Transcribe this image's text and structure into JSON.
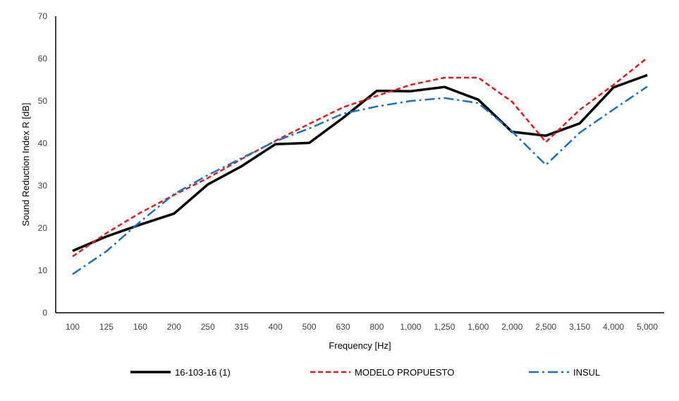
{
  "chart_data": {
    "type": "line",
    "categories": [
      "100",
      "125",
      "160",
      "200",
      "250",
      "315",
      "400",
      "500",
      "630",
      "800",
      "1,000",
      "1,250",
      "1,600",
      "2,000",
      "2,500",
      "3,150",
      "4,000",
      "5,000"
    ],
    "series": [
      {
        "name": "16-103-16 (1)",
        "color": "#000000",
        "style": "solid",
        "values": [
          14.6,
          18.0,
          20.8,
          23.4,
          30.3,
          34.6,
          39.8,
          40.1,
          46.0,
          52.4,
          52.3,
          53.3,
          50.3,
          42.7,
          41.8,
          44.7,
          53.2,
          56.1
        ]
      },
      {
        "name": "MODELO PROPUESTO",
        "color": "#e31a1c",
        "style": "dashed",
        "values": [
          13.3,
          18.8,
          23.6,
          27.8,
          31.8,
          36.3,
          40.6,
          44.6,
          48.5,
          51.2,
          53.8,
          55.5,
          55.5,
          49.8,
          40.3,
          47.9,
          53.8,
          60.2
        ]
      },
      {
        "name": "INSUL",
        "color": "#1f6fb5",
        "style": "dashdot",
        "values": [
          9.1,
          14.5,
          21.5,
          28.0,
          32.5,
          36.5,
          40.5,
          43.5,
          47.0,
          48.7,
          50.0,
          50.7,
          49.5,
          42.8,
          34.9,
          42.5,
          48.0,
          53.4
        ]
      }
    ],
    "title": "",
    "xlabel": "Frequency [Hz]",
    "ylabel": "Sound Reduction Index R [dB]",
    "ylim": [
      0,
      70
    ],
    "yticks": [
      0,
      10,
      20,
      30,
      40,
      50,
      60,
      70
    ],
    "grid": false,
    "legend_position": "bottom"
  }
}
